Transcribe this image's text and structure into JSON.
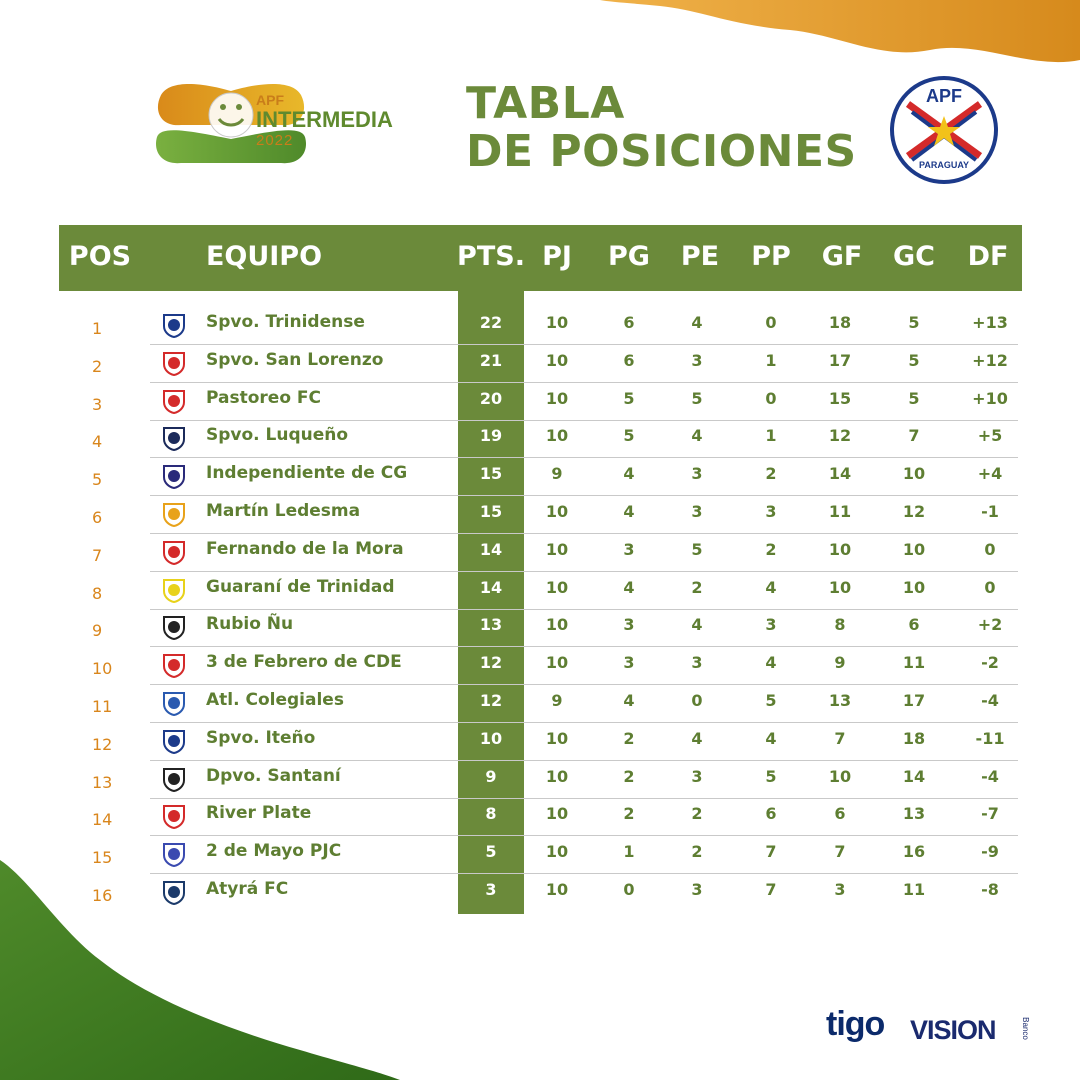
{
  "header": {
    "title_line1": "TABLA",
    "title_line2": "DE POSICIONES"
  },
  "tournament": {
    "line1": "APF",
    "line2": "INTERMEDIA",
    "line3": "2022"
  },
  "federation": {
    "top": "APF",
    "bottom": "PARAGUAY"
  },
  "columns": {
    "pos": "POS",
    "team": "EQUIPO",
    "pts": "PTS.",
    "pj": "PJ",
    "pg": "PG",
    "pe": "PE",
    "pp": "PP",
    "gf": "GF",
    "gc": "GC",
    "df": "DF"
  },
  "rows": [
    {
      "pos": "1",
      "team": "Spvo. Trinidense",
      "pts": "22",
      "pj": "10",
      "pg": "6",
      "pe": "4",
      "pp": "0",
      "gf": "18",
      "gc": "5",
      "df": "+13",
      "crest": "trinidense-crest-icon",
      "color": "#1c3a8a"
    },
    {
      "pos": "2",
      "team": "Spvo. San Lorenzo",
      "pts": "21",
      "pj": "10",
      "pg": "6",
      "pe": "3",
      "pp": "1",
      "gf": "17",
      "gc": "5",
      "df": "+12",
      "crest": "san-lorenzo-crest-icon",
      "color": "#d42a2a"
    },
    {
      "pos": "3",
      "team": "Pastoreo FC",
      "pts": "20",
      "pj": "10",
      "pg": "5",
      "pe": "5",
      "pp": "0",
      "gf": "15",
      "gc": "5",
      "df": "+10",
      "crest": "pastoreo-crest-icon",
      "color": "#d42a2a"
    },
    {
      "pos": "4",
      "team": "Spvo. Luqueño",
      "pts": "19",
      "pj": "10",
      "pg": "5",
      "pe": "4",
      "pp": "1",
      "gf": "12",
      "gc": "7",
      "df": "+5",
      "crest": "luqueno-crest-icon",
      "color": "#1b2a5a"
    },
    {
      "pos": "5",
      "team": "Independiente de CG",
      "pts": "15",
      "pj": "9",
      "pg": "4",
      "pe": "3",
      "pp": "2",
      "gf": "14",
      "gc": "10",
      "df": "+4",
      "crest": "independiente-cg-crest-icon",
      "color": "#2a2a7a"
    },
    {
      "pos": "6",
      "team": "Martín Ledesma",
      "pts": "15",
      "pj": "10",
      "pg": "4",
      "pe": "3",
      "pp": "3",
      "gf": "11",
      "gc": "12",
      "df": "-1",
      "crest": "martin-ledesma-crest-icon",
      "color": "#e8a21a"
    },
    {
      "pos": "7",
      "team": "Fernando de la Mora",
      "pts": "14",
      "pj": "10",
      "pg": "3",
      "pe": "5",
      "pp": "2",
      "gf": "10",
      "gc": "10",
      "df": "0",
      "crest": "fernando-de-la-mora-crest-icon",
      "color": "#d42a2a"
    },
    {
      "pos": "8",
      "team": "Guaraní de Trinidad",
      "pts": "14",
      "pj": "10",
      "pg": "4",
      "pe": "2",
      "pp": "4",
      "gf": "10",
      "gc": "10",
      "df": "0",
      "crest": "guarani-trinidad-crest-icon",
      "color": "#e8d21a"
    },
    {
      "pos": "9",
      "team": "Rubio Ñu",
      "pts": "13",
      "pj": "10",
      "pg": "3",
      "pe": "4",
      "pp": "3",
      "gf": "8",
      "gc": "6",
      "df": "+2",
      "crest": "rubio-nu-crest-icon",
      "color": "#222222"
    },
    {
      "pos": "10",
      "team": "3 de Febrero de CDE",
      "pts": "12",
      "pj": "10",
      "pg": "3",
      "pe": "3",
      "pp": "4",
      "gf": "9",
      "gc": "11",
      "df": "-2",
      "crest": "3-de-febrero-crest-icon",
      "color": "#d42a2a"
    },
    {
      "pos": "11",
      "team": "Atl. Colegiales",
      "pts": "12",
      "pj": "9",
      "pg": "4",
      "pe": "0",
      "pp": "5",
      "gf": "13",
      "gc": "17",
      "df": "-4",
      "crest": "colegiales-crest-icon",
      "color": "#2a5ab0"
    },
    {
      "pos": "12",
      "team": "Spvo. Iteño",
      "pts": "10",
      "pj": "10",
      "pg": "2",
      "pe": "4",
      "pp": "4",
      "gf": "7",
      "gc": "18",
      "df": "-11",
      "crest": "iteno-crest-icon",
      "color": "#1c3a8a"
    },
    {
      "pos": "13",
      "team": "Dpvo. Santaní",
      "pts": "9",
      "pj": "10",
      "pg": "2",
      "pe": "3",
      "pp": "5",
      "gf": "10",
      "gc": "14",
      "df": "-4",
      "crest": "santani-crest-icon",
      "color": "#222222"
    },
    {
      "pos": "14",
      "team": "River Plate",
      "pts": "8",
      "pj": "10",
      "pg": "2",
      "pe": "2",
      "pp": "6",
      "gf": "6",
      "gc": "13",
      "df": "-7",
      "crest": "river-plate-crest-icon",
      "color": "#d42a2a"
    },
    {
      "pos": "15",
      "team": "2 de Mayo PJC",
      "pts": "5",
      "pj": "10",
      "pg": "1",
      "pe": "2",
      "pp": "7",
      "gf": "7",
      "gc": "16",
      "df": "-9",
      "crest": "2-de-mayo-crest-icon",
      "color": "#3a4ab0"
    },
    {
      "pos": "16",
      "team": "Atyrá FC",
      "pts": "3",
      "pj": "10",
      "pg": "0",
      "pe": "3",
      "pp": "7",
      "gf": "3",
      "gc": "11",
      "df": "-8",
      "crest": "atyra-crest-icon",
      "color": "#1b3a6a"
    }
  ],
  "sponsors": {
    "tigo": "tigo",
    "vision": "VISION",
    "vision_sub": "Banco"
  },
  "colors": {
    "green": "#6b8a3a",
    "orange": "#d9861c"
  }
}
